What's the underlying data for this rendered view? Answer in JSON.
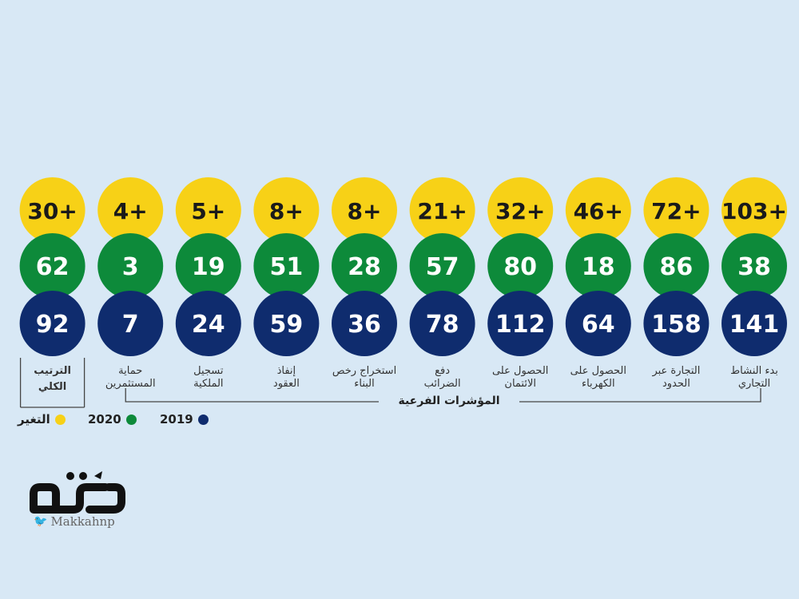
{
  "chart_data": {
    "type": "table",
    "title": "",
    "columns": [
      {
        "label": "بدء النشاط التجاري",
        "change": "103+",
        "y2020": 38,
        "y2019": 141
      },
      {
        "label": "التجارة عبر الحدود",
        "change": "72+",
        "y2020": 86,
        "y2019": 158
      },
      {
        "label": "الحصول على الكهرباء",
        "change": "46+",
        "y2020": 18,
        "y2019": 64
      },
      {
        "label": "الحصول على الائتمان",
        "change": "32+",
        "y2020": 80,
        "y2019": 112
      },
      {
        "label": "دفع الضرائب",
        "change": "21+",
        "y2020": 57,
        "y2019": 78
      },
      {
        "label": "استخراج رخص البناء",
        "change": "8+",
        "y2020": 28,
        "y2019": 36
      },
      {
        "label": "إنفاذ العقود",
        "change": "8+",
        "y2020": 51,
        "y2019": 59
      },
      {
        "label": "تسجيل الملكية",
        "change": "5+",
        "y2020": 19,
        "y2019": 24
      },
      {
        "label": "حماية المستثمرين",
        "change": "4+",
        "y2020": 3,
        "y2019": 7
      },
      {
        "label": "الترتيب الكلي",
        "change": "30+",
        "y2020": 62,
        "y2019": 92
      }
    ],
    "group_label": "المؤشرات الفرعية",
    "legend": [
      {
        "name": "التغير",
        "color": "#f7d117"
      },
      {
        "name": "2020",
        "color": "#0d8a3a"
      },
      {
        "name": "2019",
        "color": "#0f2c6e"
      }
    ]
  },
  "colors": {
    "change": "#f7d117",
    "y2020": "#0d8a3a",
    "y2019": "#0f2c6e",
    "background": "#d8e8f5"
  },
  "logo": {
    "text": "مكة",
    "handle": "Makkahnp",
    "handle_icon": "twitter-icon"
  }
}
